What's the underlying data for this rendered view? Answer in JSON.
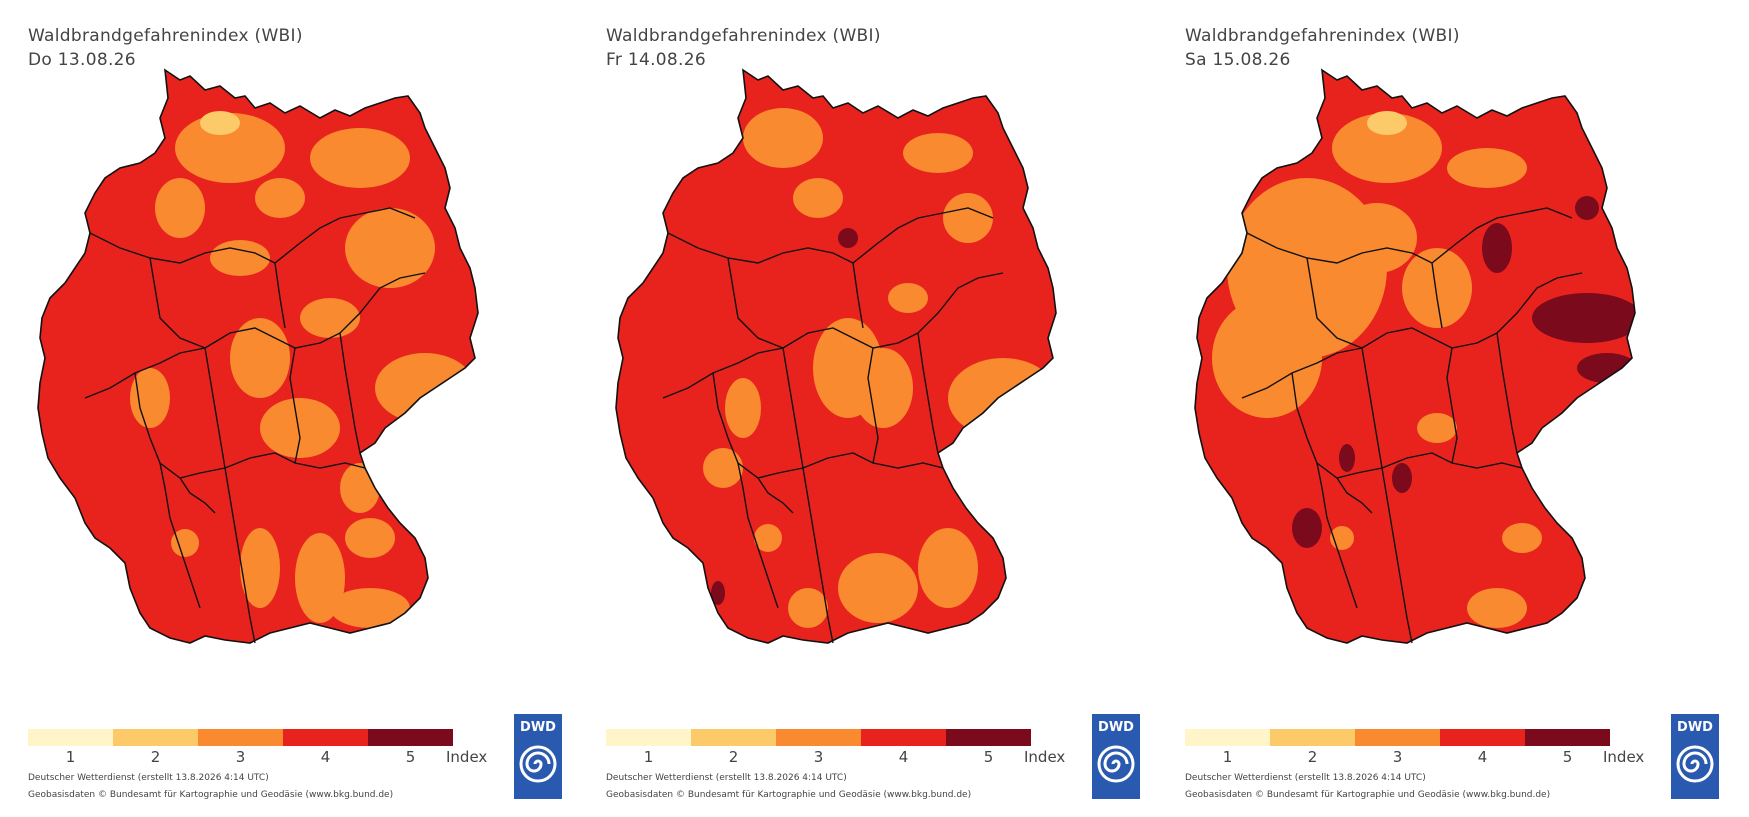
{
  "colors": {
    "level1": "#fff5c8",
    "level2": "#fdca6a",
    "level3": "#f98a30",
    "level4": "#e8231e",
    "level5": "#7a0a1c",
    "border": "#111111",
    "dwd_blue": "#2a5ab0"
  },
  "legend": {
    "levels": [
      "1",
      "2",
      "3",
      "4",
      "5"
    ],
    "unit": "Index"
  },
  "credits": {
    "line1": "Deutscher Wetterdienst (erstellt 13.8.2026 4:14 UTC)",
    "line2": "Geobasisdaten © Bundesamt für Kartographie und Geodäsie (www.bkg.bund.de)"
  },
  "logo": {
    "text": "DWD",
    "icon": "dwd-spiral-logo-icon"
  },
  "panels": [
    {
      "title": "Waldbrandgefahrenindex (WBI)",
      "date": "Do 13.08.26",
      "dominant_level": 4
    },
    {
      "title": "Waldbrandgefahrenindex (WBI)",
      "date": "Fr 14.08.26",
      "dominant_level": 4
    },
    {
      "title": "Waldbrandgefahrenindex (WBI)",
      "date": "Sa 15.08.26",
      "dominant_level": 4
    }
  ]
}
